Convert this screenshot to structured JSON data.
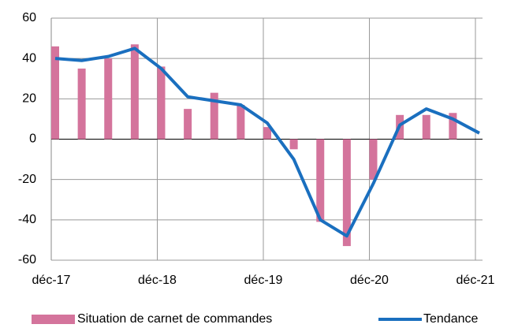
{
  "chart_data": {
    "type": "bar-line",
    "categories": [
      "déc-17",
      null,
      null,
      null,
      "déc-18",
      null,
      null,
      null,
      "déc-19",
      null,
      null,
      null,
      "déc-20",
      null,
      null,
      null,
      "déc-21"
    ],
    "series": [
      {
        "name": "Situation de carnet de commandes",
        "type": "bar",
        "color": "#d4749c",
        "values": [
          46,
          35,
          40,
          47,
          36,
          15,
          23,
          17,
          6,
          -5,
          -41,
          -53,
          -20,
          12,
          12,
          13,
          null
        ]
      },
      {
        "name": "Tendance",
        "type": "line",
        "color": "#1a6fbf",
        "values": [
          40,
          39,
          41,
          45,
          35,
          21,
          19,
          17,
          8,
          -10,
          -40,
          -48,
          -22,
          7,
          15,
          10,
          3
        ]
      }
    ],
    "ylim": [
      -60,
      60
    ],
    "yticks": [
      -60,
      -40,
      -20,
      0,
      20,
      40,
      60
    ],
    "grid": true,
    "legend": "bottom"
  }
}
